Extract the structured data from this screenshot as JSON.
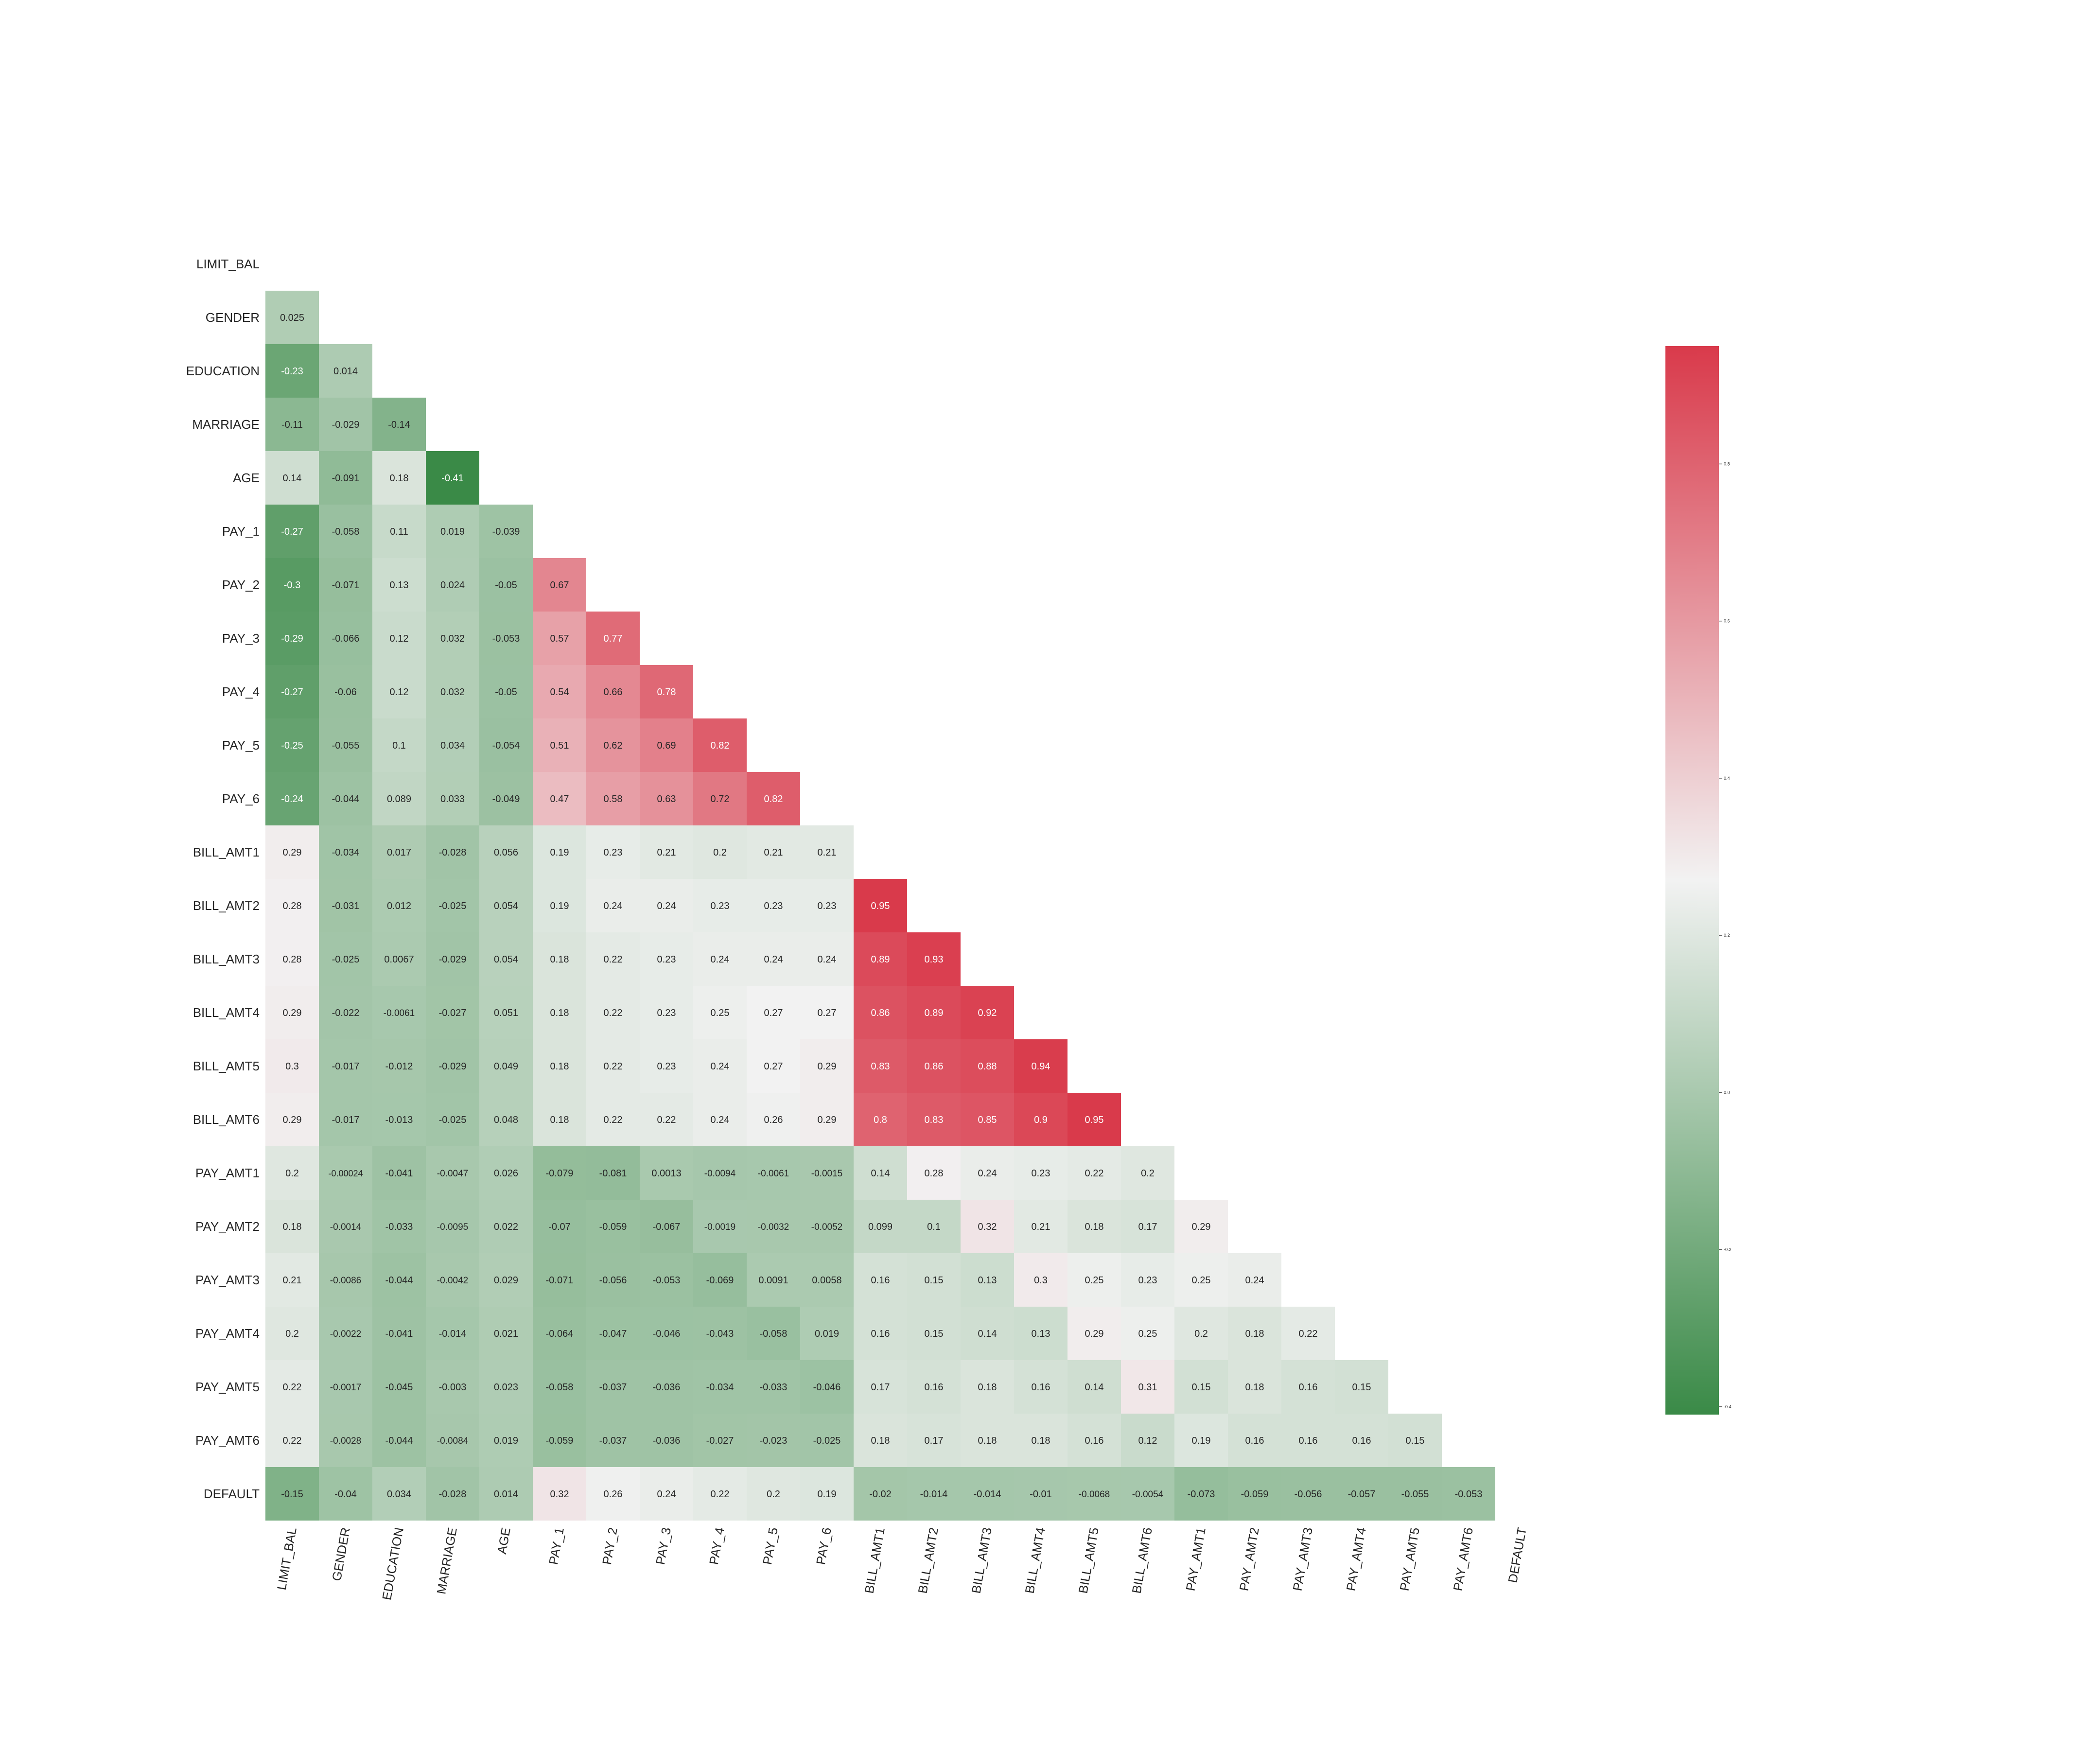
{
  "chart_data": {
    "type": "heatmap",
    "title": "",
    "mask": "upper-triangle-including-diagonal",
    "variables": [
      "LIMIT_BAL",
      "GENDER",
      "EDUCATION",
      "MARRIAGE",
      "AGE",
      "PAY_1",
      "PAY_2",
      "PAY_3",
      "PAY_4",
      "PAY_5",
      "PAY_6",
      "BILL_AMT1",
      "BILL_AMT2",
      "BILL_AMT3",
      "BILL_AMT4",
      "BILL_AMT5",
      "BILL_AMT6",
      "PAY_AMT1",
      "PAY_AMT2",
      "PAY_AMT3",
      "PAY_AMT4",
      "PAY_AMT5",
      "PAY_AMT6",
      "DEFAULT"
    ],
    "lower_triangle": [
      [],
      [
        "0.025"
      ],
      [
        "-0.23",
        "0.014"
      ],
      [
        "-0.11",
        "-0.029",
        "-0.14"
      ],
      [
        "0.14",
        "-0.091",
        "0.18",
        "-0.41"
      ],
      [
        "-0.27",
        "-0.058",
        "0.11",
        "0.019",
        "-0.039"
      ],
      [
        "-0.3",
        "-0.071",
        "0.13",
        "0.024",
        "-0.05",
        "0.67"
      ],
      [
        "-0.29",
        "-0.066",
        "0.12",
        "0.032",
        "-0.053",
        "0.57",
        "0.77"
      ],
      [
        "-0.27",
        "-0.06",
        "0.12",
        "0.032",
        "-0.05",
        "0.54",
        "0.66",
        "0.78"
      ],
      [
        "-0.25",
        "-0.055",
        "0.1",
        "0.034",
        "-0.054",
        "0.51",
        "0.62",
        "0.69",
        "0.82"
      ],
      [
        "-0.24",
        "-0.044",
        "0.089",
        "0.033",
        "-0.049",
        "0.47",
        "0.58",
        "0.63",
        "0.72",
        "0.82"
      ],
      [
        "0.29",
        "-0.034",
        "0.017",
        "-0.028",
        "0.056",
        "0.19",
        "0.23",
        "0.21",
        "0.2",
        "0.21",
        "0.21"
      ],
      [
        "0.28",
        "-0.031",
        "0.012",
        "-0.025",
        "0.054",
        "0.19",
        "0.24",
        "0.24",
        "0.23",
        "0.23",
        "0.23",
        "0.95"
      ],
      [
        "0.28",
        "-0.025",
        "0.0067",
        "-0.029",
        "0.054",
        "0.18",
        "0.22",
        "0.23",
        "0.24",
        "0.24",
        "0.24",
        "0.89",
        "0.93"
      ],
      [
        "0.29",
        "-0.022",
        "-0.0061",
        "-0.027",
        "0.051",
        "0.18",
        "0.22",
        "0.23",
        "0.25",
        "0.27",
        "0.27",
        "0.86",
        "0.89",
        "0.92"
      ],
      [
        "0.3",
        "-0.017",
        "-0.012",
        "-0.029",
        "0.049",
        "0.18",
        "0.22",
        "0.23",
        "0.24",
        "0.27",
        "0.29",
        "0.83",
        "0.86",
        "0.88",
        "0.94"
      ],
      [
        "0.29",
        "-0.017",
        "-0.013",
        "-0.025",
        "0.048",
        "0.18",
        "0.22",
        "0.22",
        "0.24",
        "0.26",
        "0.29",
        "0.8",
        "0.83",
        "0.85",
        "0.9",
        "0.95"
      ],
      [
        "0.2",
        "-0.00024",
        "-0.041",
        "-0.0047",
        "0.026",
        "-0.079",
        "-0.081",
        "0.0013",
        "-0.0094",
        "-0.0061",
        "-0.0015",
        "0.14",
        "0.28",
        "0.24",
        "0.23",
        "0.22",
        "0.2"
      ],
      [
        "0.18",
        "-0.0014",
        "-0.033",
        "-0.0095",
        "0.022",
        "-0.07",
        "-0.059",
        "-0.067",
        "-0.0019",
        "-0.0032",
        "-0.0052",
        "0.099",
        "0.1",
        "0.32",
        "0.21",
        "0.18",
        "0.17",
        "0.29"
      ],
      [
        "0.21",
        "-0.0086",
        "-0.044",
        "-0.0042",
        "0.029",
        "-0.071",
        "-0.056",
        "-0.053",
        "-0.069",
        "0.0091",
        "0.0058",
        "0.16",
        "0.15",
        "0.13",
        "0.3",
        "0.25",
        "0.23",
        "0.25",
        "0.24"
      ],
      [
        "0.2",
        "-0.0022",
        "-0.041",
        "-0.014",
        "0.021",
        "-0.064",
        "-0.047",
        "-0.046",
        "-0.043",
        "-0.058",
        "0.019",
        "0.16",
        "0.15",
        "0.14",
        "0.13",
        "0.29",
        "0.25",
        "0.2",
        "0.18",
        "0.22"
      ],
      [
        "0.22",
        "-0.0017",
        "-0.045",
        "-0.003",
        "0.023",
        "-0.058",
        "-0.037",
        "-0.036",
        "-0.034",
        "-0.033",
        "-0.046",
        "0.17",
        "0.16",
        "0.18",
        "0.16",
        "0.14",
        "0.31",
        "0.15",
        "0.18",
        "0.16",
        "0.15"
      ],
      [
        "0.22",
        "-0.0028",
        "-0.044",
        "-0.0084",
        "0.019",
        "-0.059",
        "-0.037",
        "-0.036",
        "-0.027",
        "-0.023",
        "-0.025",
        "0.18",
        "0.17",
        "0.18",
        "0.18",
        "0.16",
        "0.12",
        "0.19",
        "0.16",
        "0.16",
        "0.16",
        "0.15"
      ],
      [
        "-0.15",
        "-0.04",
        "0.034",
        "-0.028",
        "0.014",
        "0.32",
        "0.26",
        "0.24",
        "0.22",
        "0.2",
        "0.19",
        "-0.02",
        "-0.014",
        "-0.014",
        "-0.01",
        "-0.0068",
        "-0.0054",
        "-0.073",
        "-0.059",
        "-0.056",
        "-0.057",
        "-0.055",
        "-0.053"
      ]
    ],
    "colorbar": {
      "vmin": -0.41,
      "vmax": 0.95,
      "ticks": [
        "-0.4",
        "-0.2",
        "0.0",
        "0.2",
        "0.4",
        "0.6",
        "0.8"
      ],
      "colors": {
        "low": "#3a8a47",
        "mid": "#f2f2f2",
        "high": "#d93a4b"
      }
    }
  }
}
